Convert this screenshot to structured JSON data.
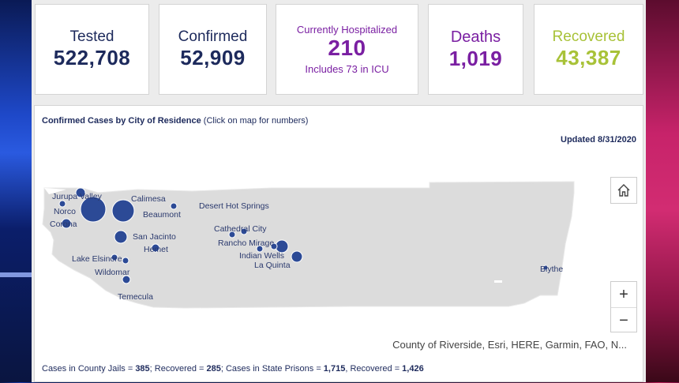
{
  "cards": {
    "tested": {
      "label": "Tested",
      "value": "522,708"
    },
    "confirmed": {
      "label": "Confirmed",
      "value": "52,909"
    },
    "hospitalized": {
      "label": "Currently Hospitalized",
      "value": "210",
      "sub": "Includes 73 in ICU"
    },
    "deaths": {
      "label": "Deaths",
      "value": "1,019"
    },
    "recovered": {
      "label": "Recovered",
      "value": "43,387"
    }
  },
  "map": {
    "title_bold": "Confirmed Cases by City of Residence",
    "title_note": " (Click on map for numbers)",
    "updated": "Updated 8/31/2020",
    "attribution": "County of Riverside, Esri, HERE, Garmin, FAO, N...",
    "cities": [
      {
        "name": "Jurupa Valley"
      },
      {
        "name": "Calimesa"
      },
      {
        "name": "Norco"
      },
      {
        "name": "Beaumont"
      },
      {
        "name": "Corona"
      },
      {
        "name": "Desert Hot Springs"
      },
      {
        "name": "San Jacinto"
      },
      {
        "name": "Cathedral City"
      },
      {
        "name": "Hemet"
      },
      {
        "name": "Rancho Mirage"
      },
      {
        "name": "Lake Elsinore"
      },
      {
        "name": "Indian Wells"
      },
      {
        "name": "Wildomar"
      },
      {
        "name": "La Quinta"
      },
      {
        "name": "Temecula"
      },
      {
        "name": "Blythe"
      }
    ],
    "controls": {
      "zoom_in": "+",
      "zoom_out": "−"
    },
    "home_icon": "home-icon"
  },
  "footer": {
    "jails_label": "Cases in County Jails = ",
    "jails_cases": "385",
    "jails_rec_label": "; Recovered = ",
    "jails_recovered": "285",
    "prisons_label": "; Cases in State Prisons = ",
    "prisons_cases": "1,715",
    "prisons_rec_label": ", Recovered = ",
    "prisons_recovered": "1,426"
  },
  "colors": {
    "navy": "#1d2a5c",
    "purple": "#7a1fa2",
    "green": "#a8c238",
    "bubble": "#2c4a96"
  }
}
